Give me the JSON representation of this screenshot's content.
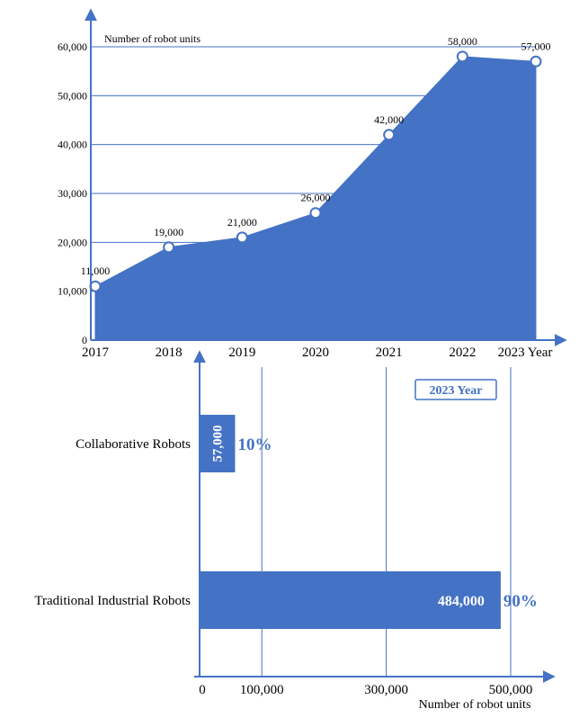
{
  "colors": {
    "accent": "#4472c4",
    "axis": "#4472c4",
    "text": "#000000"
  },
  "chart_data": [
    {
      "type": "area",
      "title": "",
      "ylabel": "Number of robot units",
      "xlabel": "Year",
      "last_tick_suffix": " Year",
      "x": [
        "2017",
        "2018",
        "2019",
        "2020",
        "2021",
        "2022",
        "2023"
      ],
      "series": [
        {
          "values": [
            11000,
            19000,
            21000,
            26000,
            42000,
            58000,
            57000
          ],
          "labels": [
            "11,000",
            "19,000",
            "21,000",
            "26,000",
            "42,000",
            "58,000",
            "57,000"
          ]
        }
      ],
      "ylim": [
        0,
        60000
      ],
      "yticks": [
        0,
        10000,
        20000,
        30000,
        40000,
        50000,
        60000
      ],
      "ytick_labels": [
        "0",
        "10,000",
        "20,000",
        "30,000",
        "40,000",
        "50,000",
        "60,000"
      ],
      "grid": true
    },
    {
      "type": "bar",
      "orientation": "horizontal",
      "badge": "2023 Year",
      "xlabel": "Number of robot units",
      "categories": [
        "Collaborative Robots",
        "Traditional Industrial Robots"
      ],
      "values": [
        57000,
        484000
      ],
      "value_labels": [
        "57,000",
        "484,000"
      ],
      "percent_labels": [
        "10%",
        "90%"
      ],
      "xticks": [
        0,
        100000,
        300000,
        500000
      ],
      "xtick_labels": [
        "0",
        "100,000",
        "300,000",
        "500,000"
      ],
      "grid": true
    }
  ]
}
